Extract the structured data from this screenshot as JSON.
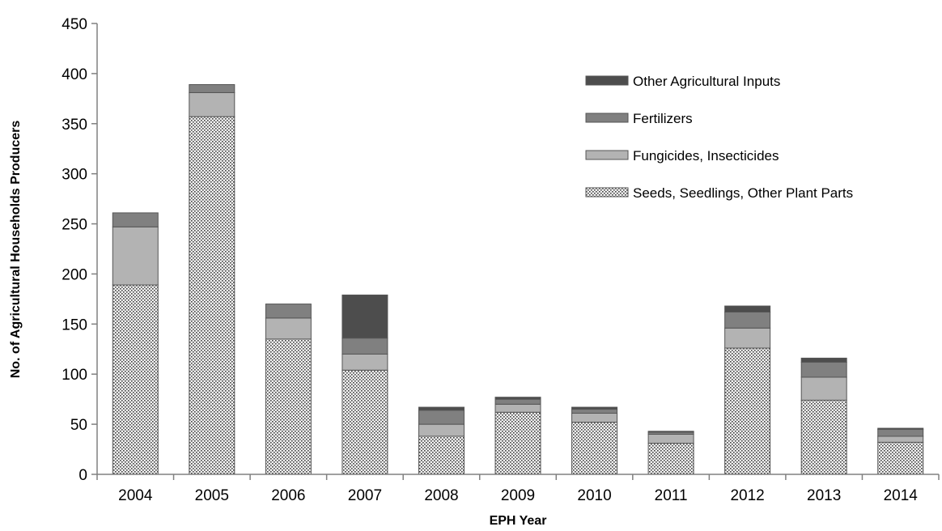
{
  "chart_data": {
    "type": "bar",
    "stacked": true,
    "title": "",
    "xlabel": "EPH Year",
    "ylabel": "No. of Agricultural Households Producers",
    "ylim": [
      0,
      450
    ],
    "ytick_step": 50,
    "yticks": [
      "0",
      "50",
      "100",
      "150",
      "200",
      "250",
      "300",
      "350",
      "400",
      "450"
    ],
    "categories": [
      "2004",
      "2005",
      "2006",
      "2007",
      "2008",
      "2009",
      "2010",
      "2011",
      "2012",
      "2013",
      "2014"
    ],
    "legend_position": "top-right",
    "grid": false,
    "series": [
      {
        "name": "Seeds, Seedlings, Other Plant Parts",
        "fill": "dotted",
        "color": "#d9d9d9",
        "values": [
          189,
          357,
          135,
          104,
          38,
          62,
          52,
          31,
          126,
          74,
          32
        ]
      },
      {
        "name": "Fungicides, Insecticides",
        "fill": "solid",
        "color": "#b3b3b3",
        "values": [
          58,
          24,
          21,
          16,
          12,
          8,
          9,
          9,
          20,
          23,
          6
        ]
      },
      {
        "name": "Fertilizers",
        "fill": "solid",
        "color": "#808080",
        "values": [
          14,
          8,
          14,
          16,
          14,
          5,
          4,
          2,
          16,
          15,
          7
        ]
      },
      {
        "name": "Other Agricultural Inputs",
        "fill": "solid",
        "color": "#4d4d4d",
        "values": [
          0,
          0,
          0,
          43,
          3,
          2,
          2,
          1,
          6,
          4,
          1
        ]
      }
    ]
  }
}
